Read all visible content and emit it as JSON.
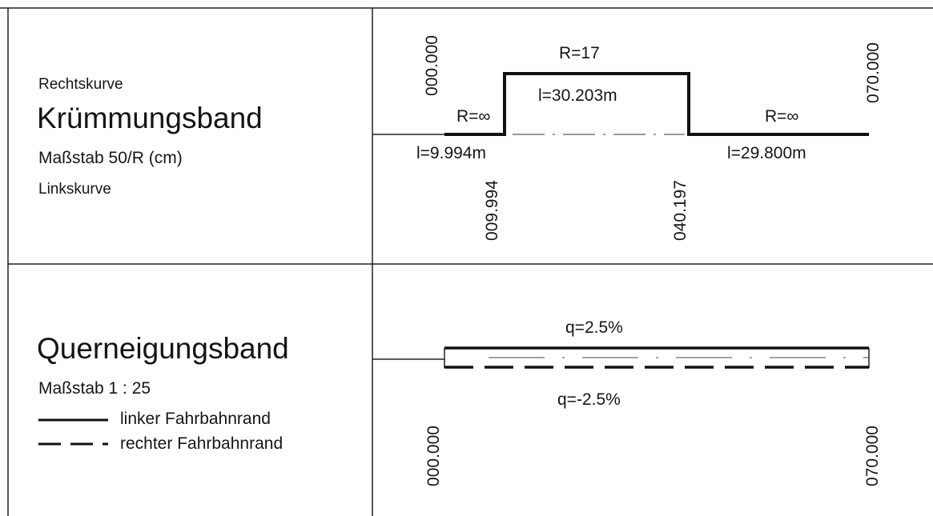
{
  "curvature_band": {
    "right_curve_label": "Rechtskurve",
    "title": "Krümmungsband",
    "scale": "Maßstab 50/R (cm)",
    "left_curve_label": "Linkskurve",
    "segments": [
      {
        "radius_label": "R=∞",
        "length_label": "l=9.994m"
      },
      {
        "radius_label": "R=17",
        "length_label": "l=30.203m"
      },
      {
        "radius_label": "R=∞",
        "length_label": "l=29.800m"
      }
    ],
    "stations": [
      "000.000",
      "009.994",
      "040.197",
      "070.000"
    ]
  },
  "superelevation_band": {
    "title": "Querneigungsband",
    "scale": "Maßstab 1 : 25",
    "legend": [
      {
        "line": "solid",
        "label": "linker Fahrbahnrand"
      },
      {
        "line": "dashed",
        "label": "rechter Fahrbahnrand"
      }
    ],
    "left_edge_slope": "q=2.5%",
    "right_edge_slope": "q=-2.5%",
    "stations": [
      "000.000",
      "070.000"
    ]
  }
}
